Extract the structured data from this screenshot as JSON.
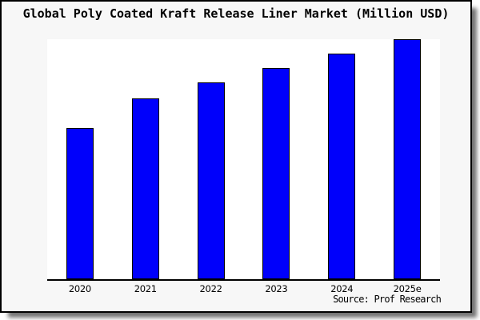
{
  "chart_data": {
    "type": "bar",
    "title": "Global Poly Coated Kraft Release Liner Market (Million USD)",
    "categories": [
      "2020",
      "2021",
      "2022",
      "2023",
      "2024",
      "2025e"
    ],
    "values": [
      63,
      75.3,
      82,
      88,
      94,
      100
    ],
    "values_note": "No y-axis or data labels are shown in the chart; values are relative bar heights normalized to 2025e = 100, estimated from pixels.",
    "unit": "Million USD",
    "xlabel": "",
    "ylabel": "",
    "ylim": [
      0,
      100.7
    ],
    "grid": false,
    "legend": null,
    "bar_color": "#0000fb",
    "bar_border_color": "#000000",
    "axis_color": "#000000",
    "plot_bg": "#ffffff",
    "card_bg": "#f7f7f7"
  },
  "source": {
    "label": "Source: Prof Research"
  }
}
